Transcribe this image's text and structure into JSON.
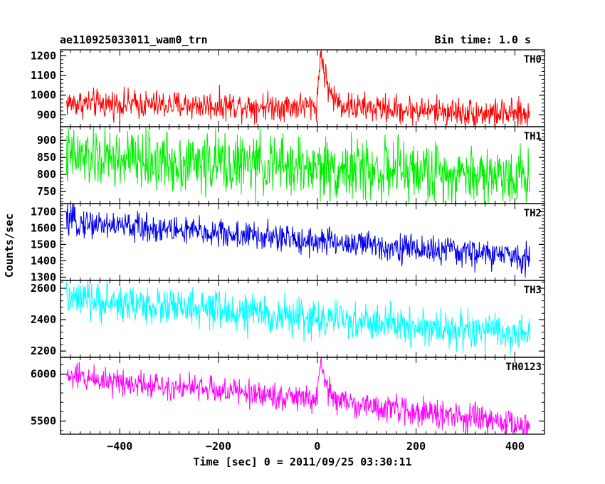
{
  "chart_data": {
    "type": "line",
    "title_left": "ae110925033011_wam0_trn",
    "title_right": "Bin time: 1.0 s",
    "xlabel": "Time [sec] 0 = 2011/09/25 03:30:11",
    "ylabel": "Counts/sec",
    "xlim": [
      -520,
      460
    ],
    "x_ticks": [
      -400,
      -200,
      0,
      200,
      400
    ],
    "x_tick_labels": [
      "−400",
      "−200",
      "0",
      "200",
      "400"
    ],
    "x_range": [
      -508,
      430
    ],
    "bin_time": 1.0,
    "grid": false,
    "panels": [
      {
        "name": "TH0",
        "color": "#ff0000",
        "ylim": [
          840,
          1230
        ],
        "y_ticks": [
          900,
          1000,
          1100,
          1200
        ],
        "trend": [
          [
            -508,
            960
          ],
          [
            -300,
            950
          ],
          [
            -100,
            945
          ],
          [
            -5,
            945
          ],
          [
            430,
            900
          ]
        ],
        "noise": 45,
        "flare": {
          "peak_time": 8,
          "peak_value": 1220,
          "rise": 6,
          "decay": 14
        }
      },
      {
        "name": "TH1",
        "color": "#00ee00",
        "ylim": [
          715,
          940
        ],
        "y_ticks": [
          750,
          800,
          850,
          900
        ],
        "trend": [
          [
            -508,
            850
          ],
          [
            430,
            795
          ]
        ],
        "noise": 55
      },
      {
        "name": "TH2",
        "color": "#0000ee",
        "ylim": [
          1280,
          1750
        ],
        "y_ticks": [
          1300,
          1400,
          1500,
          1600,
          1700
        ],
        "trend": [
          [
            -508,
            1640
          ],
          [
            430,
            1420
          ]
        ],
        "noise": 55
      },
      {
        "name": "TH3",
        "color": "#00ffff",
        "ylim": [
          2160,
          2650
        ],
        "y_ticks": [
          2200,
          2400,
          2600
        ],
        "trend": [
          [
            -508,
            2530
          ],
          [
            430,
            2300
          ]
        ],
        "noise": 75
      },
      {
        "name": "TH0123",
        "color": "#ff00ff",
        "ylim": [
          5360,
          6180
        ],
        "y_ticks": [
          5500,
          6000
        ],
        "trend": [
          [
            -508,
            5980
          ],
          [
            -5,
            5730
          ],
          [
            430,
            5450
          ]
        ],
        "noise": 90,
        "flare": {
          "peak_time": 8,
          "peak_value": 6070,
          "rise": 6,
          "decay": 14
        }
      }
    ]
  }
}
